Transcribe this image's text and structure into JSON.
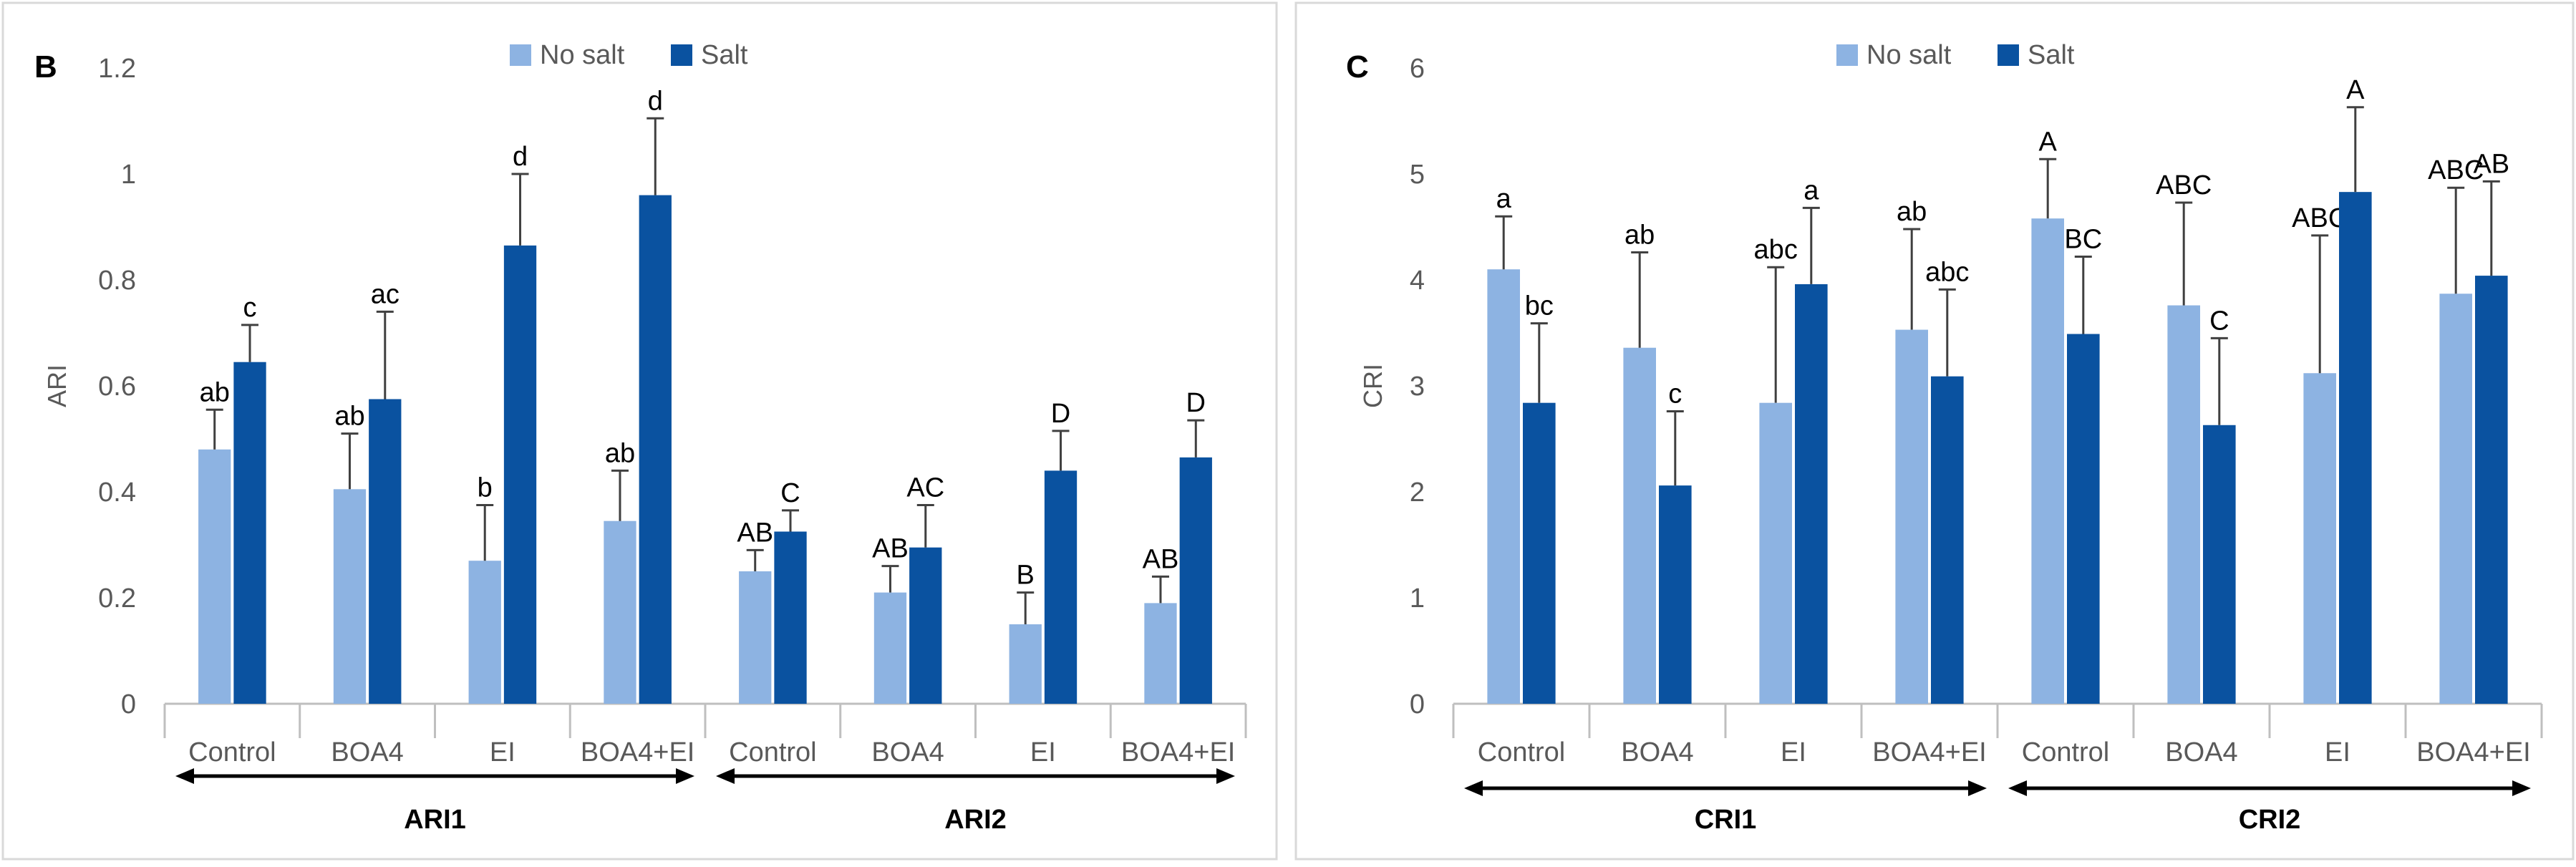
{
  "colors": {
    "no_salt": "#8db3e2",
    "salt": "#0a52a0",
    "axis": "#bfbfbf",
    "text": "#595959",
    "border": "#d9d9d9",
    "error": "#404040"
  },
  "chart_data": [
    {
      "type": "bar",
      "panel_label": "B",
      "ylabel": "ARI",
      "ylim": [
        0,
        1.2
      ],
      "yticks": [
        "0",
        "0.2",
        "0.4",
        "0.6",
        "0.8",
        "1",
        "1.2"
      ],
      "legend": [
        "No salt",
        "Salt"
      ],
      "legend_position": "top-center",
      "categories": [
        "Control",
        "BOA4",
        "EI",
        "BOA4+EI",
        "Control",
        "BOA4",
        "EI",
        "BOA4+EI"
      ],
      "groups": [
        {
          "label": "ARI1",
          "start": 0,
          "end": 3
        },
        {
          "label": "ARI2",
          "start": 4,
          "end": 7
        }
      ],
      "series": [
        {
          "name": "No salt",
          "values": [
            0.48,
            0.405,
            0.27,
            0.345,
            0.25,
            0.21,
            0.15,
            0.19
          ],
          "errors": [
            0.075,
            0.105,
            0.105,
            0.095,
            0.04,
            0.05,
            0.06,
            0.05
          ],
          "labels": [
            "ab",
            "ab",
            "b",
            "ab",
            "AB",
            "AB",
            "B",
            "AB"
          ]
        },
        {
          "name": "Salt",
          "values": [
            0.645,
            0.575,
            0.865,
            0.96,
            0.325,
            0.295,
            0.44,
            0.465
          ],
          "errors": [
            0.07,
            0.165,
            0.135,
            0.145,
            0.04,
            0.08,
            0.075,
            0.07
          ],
          "labels": [
            "c",
            "ac",
            "d",
            "d",
            "C",
            "AC",
            "D",
            "D"
          ]
        }
      ]
    },
    {
      "type": "bar",
      "panel_label": "C",
      "ylabel": "CRI",
      "ylim": [
        0,
        6
      ],
      "yticks": [
        "0",
        "1",
        "2",
        "3",
        "4",
        "5",
        "6"
      ],
      "legend": [
        "No salt",
        "Salt"
      ],
      "legend_position": "top-center",
      "categories": [
        "Control",
        "BOA4",
        "EI",
        "BOA4+EI",
        "Control",
        "BOA4",
        "EI",
        "BOA4+EI"
      ],
      "groups": [
        {
          "label": "CRI1",
          "start": 0,
          "end": 3
        },
        {
          "label": "CRI2",
          "start": 4,
          "end": 7
        }
      ],
      "series": [
        {
          "name": "No salt",
          "values": [
            4.1,
            3.36,
            2.84,
            3.53,
            4.58,
            3.76,
            3.12,
            3.87
          ],
          "errors": [
            0.5,
            0.9,
            1.28,
            0.95,
            0.56,
            0.97,
            1.3,
            1.0
          ],
          "labels": [
            "a",
            "ab",
            "abc",
            "ab",
            "A",
            "ABC",
            "ABC",
            "ABC"
          ]
        },
        {
          "name": "Salt",
          "values": [
            2.84,
            2.06,
            3.96,
            3.09,
            3.49,
            2.63,
            4.83,
            4.04
          ],
          "errors": [
            0.75,
            0.7,
            0.72,
            0.82,
            0.73,
            0.82,
            0.8,
            0.89
          ],
          "labels": [
            "bc",
            "c",
            "a",
            "abc",
            "BC",
            "C",
            "A",
            "AB"
          ]
        }
      ]
    }
  ]
}
